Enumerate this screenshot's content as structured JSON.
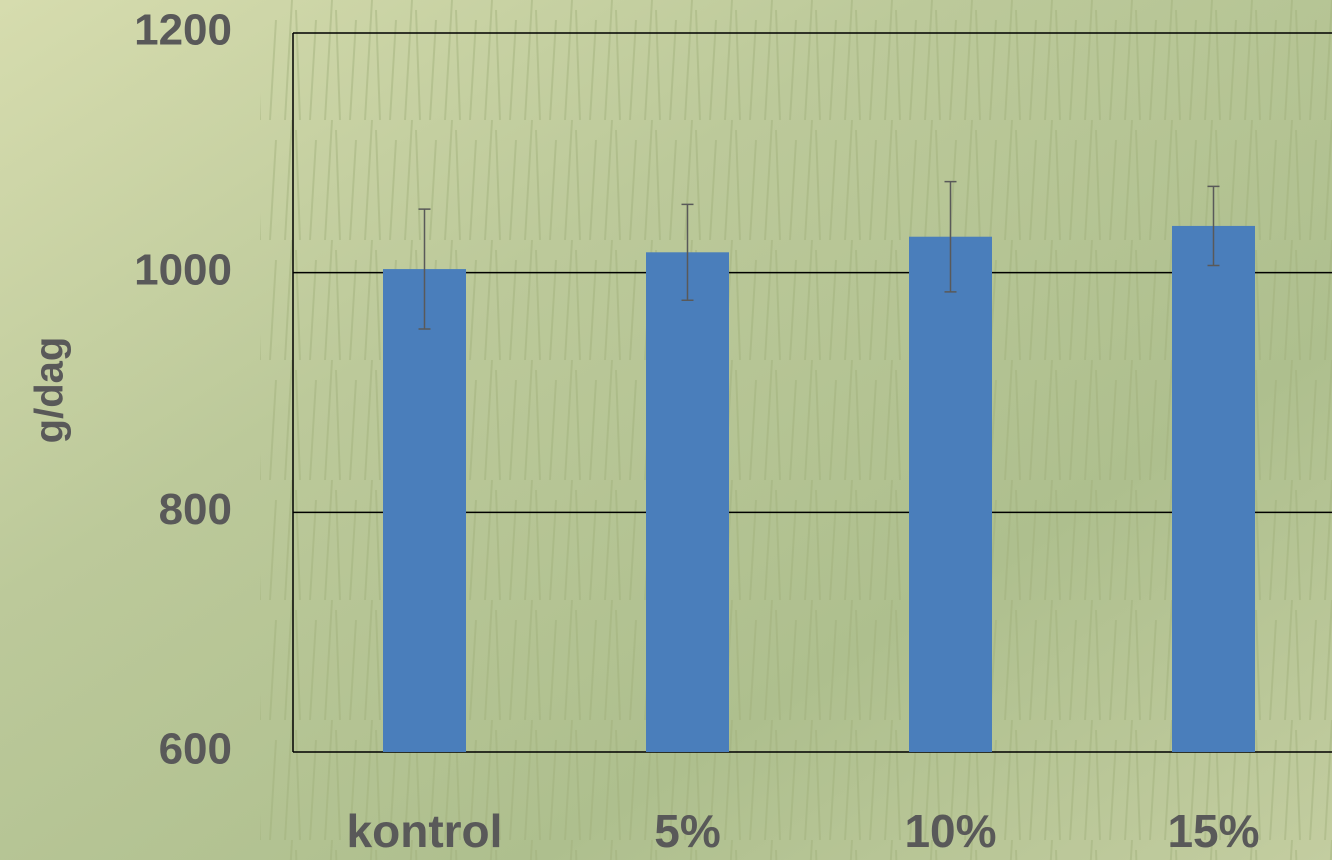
{
  "chart_data": {
    "type": "bar",
    "y_label": "g/dag",
    "categories": [
      "kontrol",
      "5%",
      "10%",
      "15%"
    ],
    "values": [
      1003,
      1017,
      1030,
      1039
    ],
    "errors": [
      50,
      40,
      46,
      33
    ],
    "color": "#4a7ebb",
    "ylim": [
      600,
      1200
    ],
    "yticks": [
      600,
      800,
      1000,
      1200
    ],
    "grid": true
  }
}
